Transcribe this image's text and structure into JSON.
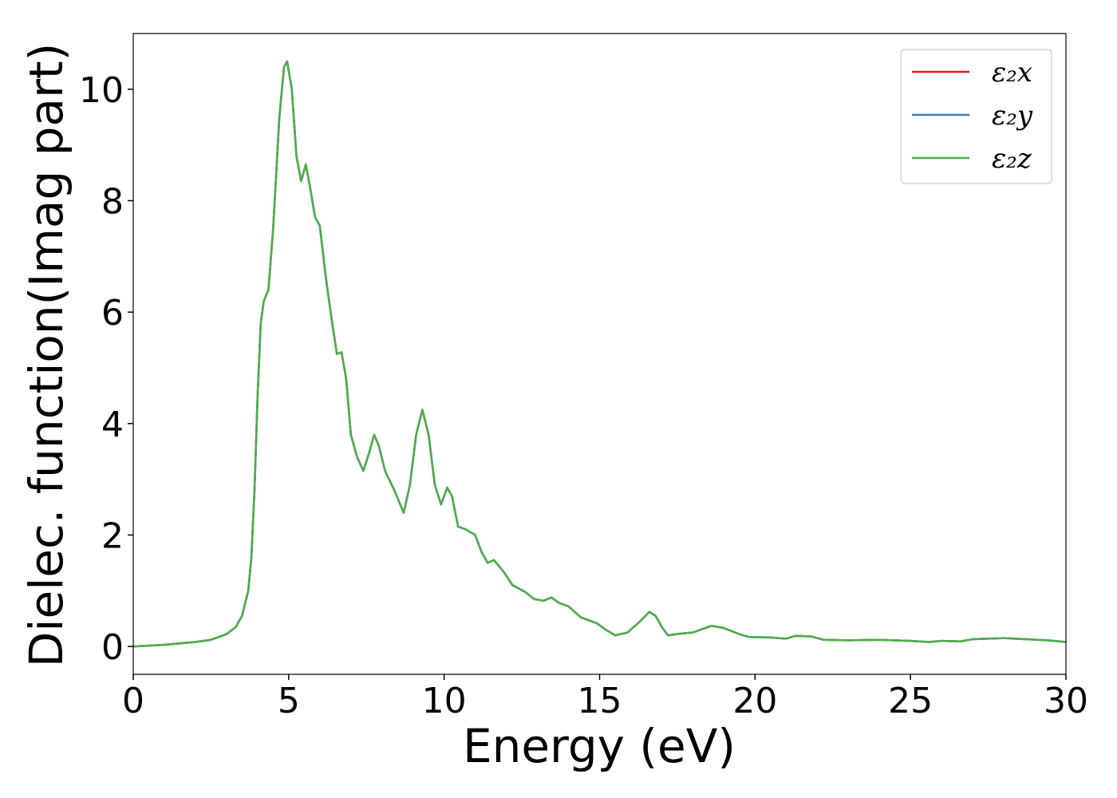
{
  "chart_data": {
    "type": "line",
    "xlabel": "Energy (eV)",
    "ylabel": "Dielec. function(Imag part)",
    "x": [
      0,
      1,
      2,
      2.5,
      3,
      3.3,
      3.5,
      3.7,
      3.8,
      3.9,
      4.0,
      4.1,
      4.2,
      4.35,
      4.5,
      4.7,
      4.85,
      4.95,
      5.1,
      5.25,
      5.4,
      5.55,
      5.7,
      5.85,
      6.0,
      6.2,
      6.4,
      6.55,
      6.7,
      6.85,
      7.0,
      7.2,
      7.4,
      7.6,
      7.75,
      7.9,
      8.1,
      8.4,
      8.7,
      8.9,
      9.1,
      9.3,
      9.5,
      9.7,
      9.9,
      10.1,
      10.25,
      10.45,
      10.7,
      11.0,
      11.2,
      11.4,
      11.6,
      11.9,
      12.2,
      12.6,
      12.9,
      13.2,
      13.45,
      13.7,
      14.0,
      14.4,
      14.9,
      15.2,
      15.5,
      15.9,
      16.3,
      16.6,
      16.8,
      17.0,
      17.2,
      17.6,
      18.0,
      18.6,
      19.0,
      19.5,
      19.8,
      20.5,
      21.0,
      21.3,
      21.8,
      22.2,
      23,
      24,
      25,
      25.6,
      26,
      26.6,
      27,
      28,
      28.7,
      29.4,
      30
    ],
    "series": [
      {
        "name": "ε₂x",
        "color": "#e41a1c",
        "values": [
          0.0,
          0.03,
          0.08,
          0.12,
          0.22,
          0.35,
          0.55,
          1.0,
          1.6,
          2.8,
          4.5,
          5.8,
          6.2,
          6.4,
          7.5,
          9.5,
          10.4,
          10.5,
          10.0,
          8.8,
          8.35,
          8.65,
          8.2,
          7.7,
          7.55,
          6.6,
          5.8,
          5.25,
          5.28,
          4.8,
          3.8,
          3.4,
          3.15,
          3.5,
          3.8,
          3.6,
          3.15,
          2.8,
          2.4,
          2.9,
          3.8,
          4.25,
          3.8,
          2.9,
          2.55,
          2.85,
          2.7,
          2.15,
          2.1,
          2.0,
          1.7,
          1.5,
          1.55,
          1.35,
          1.1,
          0.98,
          0.85,
          0.82,
          0.88,
          0.78,
          0.72,
          0.52,
          0.42,
          0.3,
          0.2,
          0.25,
          0.45,
          0.62,
          0.55,
          0.35,
          0.2,
          0.23,
          0.25,
          0.37,
          0.33,
          0.22,
          0.17,
          0.16,
          0.14,
          0.19,
          0.18,
          0.12,
          0.11,
          0.12,
          0.1,
          0.08,
          0.1,
          0.09,
          0.13,
          0.15,
          0.13,
          0.11,
          0.08
        ]
      },
      {
        "name": "ε₂y",
        "color": "#377eb8",
        "values": [
          0.0,
          0.03,
          0.08,
          0.12,
          0.22,
          0.35,
          0.55,
          1.0,
          1.6,
          2.8,
          4.5,
          5.8,
          6.2,
          6.4,
          7.5,
          9.5,
          10.4,
          10.5,
          10.0,
          8.8,
          8.35,
          8.65,
          8.2,
          7.7,
          7.55,
          6.6,
          5.8,
          5.25,
          5.28,
          4.8,
          3.8,
          3.4,
          3.15,
          3.5,
          3.8,
          3.6,
          3.15,
          2.8,
          2.4,
          2.9,
          3.8,
          4.25,
          3.8,
          2.9,
          2.55,
          2.85,
          2.7,
          2.15,
          2.1,
          2.0,
          1.7,
          1.5,
          1.55,
          1.35,
          1.1,
          0.98,
          0.85,
          0.82,
          0.88,
          0.78,
          0.72,
          0.52,
          0.42,
          0.3,
          0.2,
          0.25,
          0.45,
          0.62,
          0.55,
          0.35,
          0.2,
          0.23,
          0.25,
          0.37,
          0.33,
          0.22,
          0.17,
          0.16,
          0.14,
          0.19,
          0.18,
          0.12,
          0.11,
          0.12,
          0.1,
          0.08,
          0.1,
          0.09,
          0.13,
          0.15,
          0.13,
          0.11,
          0.08
        ]
      },
      {
        "name": "ε₂z",
        "color": "#4daf4a",
        "values": [
          0.0,
          0.03,
          0.08,
          0.12,
          0.22,
          0.35,
          0.55,
          1.0,
          1.6,
          2.8,
          4.5,
          5.8,
          6.2,
          6.4,
          7.5,
          9.5,
          10.4,
          10.5,
          10.0,
          8.8,
          8.35,
          8.65,
          8.2,
          7.7,
          7.55,
          6.6,
          5.8,
          5.25,
          5.28,
          4.8,
          3.8,
          3.4,
          3.15,
          3.5,
          3.8,
          3.6,
          3.15,
          2.8,
          2.4,
          2.9,
          3.8,
          4.25,
          3.8,
          2.9,
          2.55,
          2.85,
          2.7,
          2.15,
          2.1,
          2.0,
          1.7,
          1.5,
          1.55,
          1.35,
          1.1,
          0.98,
          0.85,
          0.82,
          0.88,
          0.78,
          0.72,
          0.52,
          0.42,
          0.3,
          0.2,
          0.25,
          0.45,
          0.62,
          0.55,
          0.35,
          0.2,
          0.23,
          0.25,
          0.37,
          0.33,
          0.22,
          0.17,
          0.16,
          0.14,
          0.19,
          0.18,
          0.12,
          0.11,
          0.12,
          0.1,
          0.08,
          0.1,
          0.09,
          0.13,
          0.15,
          0.13,
          0.11,
          0.08
        ]
      }
    ],
    "xlim": [
      0,
      30
    ],
    "xticks": [
      0,
      5,
      10,
      15,
      20,
      25,
      30
    ],
    "ylim": [
      -0.5,
      11.0
    ],
    "yticks": [
      0,
      2,
      4,
      6,
      8,
      10
    ],
    "grid": false,
    "legend": "upper right"
  }
}
